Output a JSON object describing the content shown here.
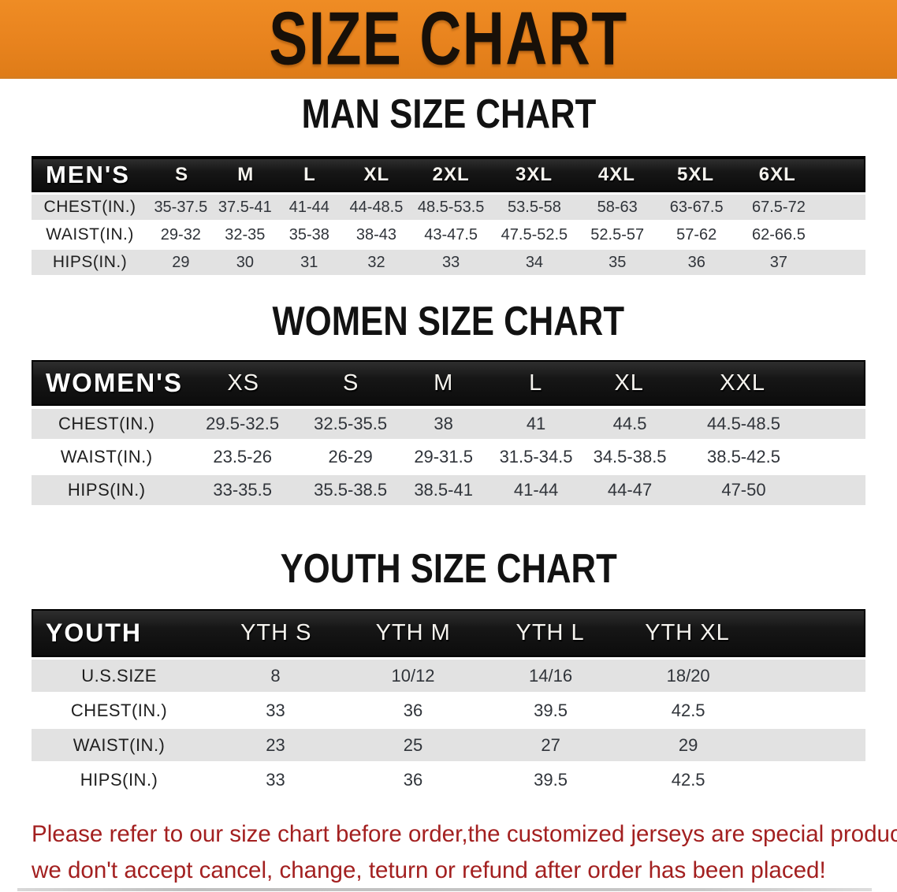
{
  "banner": {
    "title": "SIZE CHART",
    "bg_color": "#E8831E"
  },
  "colors": {
    "banner_bg": "#E8831E",
    "table_header_bg": "#161616",
    "row_gray": "#E2E2E2",
    "row_white": "#FFFFFF",
    "note_red": "#A32020"
  },
  "tables": [
    {
      "heading": "MAN SIZE CHART",
      "corner_label": "MEN'S",
      "columns": [
        "S",
        "M",
        "L",
        "XL",
        "2XL",
        "3XL",
        "4XL",
        "5XL",
        "6XL"
      ],
      "rows": [
        {
          "label": "CHEST(IN.)",
          "values": [
            "35-37.5",
            "37.5-41",
            "41-44",
            "44-48.5",
            "48.5-53.5",
            "53.5-58",
            "58-63",
            "63-67.5",
            "67.5-72"
          ]
        },
        {
          "label": "WAIST(IN.)",
          "values": [
            "29-32",
            "32-35",
            "35-38",
            "38-43",
            "43-47.5",
            "47.5-52.5",
            "52.5-57",
            "57-62",
            "62-66.5"
          ]
        },
        {
          "label": "HIPS(IN.)",
          "values": [
            "29",
            "30",
            "31",
            "32",
            "33",
            "34",
            "35",
            "36",
            "37"
          ]
        }
      ]
    },
    {
      "heading": "WOMEN SIZE CHART",
      "corner_label": "WOMEN'S",
      "columns": [
        "XS",
        "S",
        "M",
        "L",
        "XL",
        "XXL"
      ],
      "rows": [
        {
          "label": "CHEST(IN.)",
          "values": [
            "29.5-32.5",
            "32.5-35.5",
            "38",
            "41",
            "44.5",
            "44.5-48.5"
          ]
        },
        {
          "label": "WAIST(IN.)",
          "values": [
            "23.5-26",
            "26-29",
            "29-31.5",
            "31.5-34.5",
            "34.5-38.5",
            "38.5-42.5"
          ]
        },
        {
          "label": "HIPS(IN.)",
          "values": [
            "33-35.5",
            "35.5-38.5",
            "38.5-41",
            "41-44",
            "44-47",
            "47-50"
          ]
        }
      ]
    },
    {
      "heading": "YOUTH SIZE CHART",
      "corner_label": "YOUTH",
      "columns": [
        "YTH S",
        "YTH M",
        "YTH L",
        "YTH XL"
      ],
      "rows": [
        {
          "label": "U.S.SIZE",
          "values": [
            "8",
            "10/12",
            "14/16",
            "18/20"
          ]
        },
        {
          "label": "CHEST(IN.)",
          "values": [
            "33",
            "36",
            "39.5",
            "42.5"
          ]
        },
        {
          "label": "WAIST(IN.)",
          "values": [
            "23",
            "25",
            "27",
            "29"
          ]
        },
        {
          "label": "HIPS(IN.)",
          "values": [
            "33",
            "36",
            "39.5",
            "42.5"
          ]
        }
      ]
    }
  ],
  "note": {
    "line1": "Please refer to our size chart before order,the customized jerseys are special products,",
    "line2": "we don't accept cancel, change, teturn or refund after order has been placed!"
  }
}
